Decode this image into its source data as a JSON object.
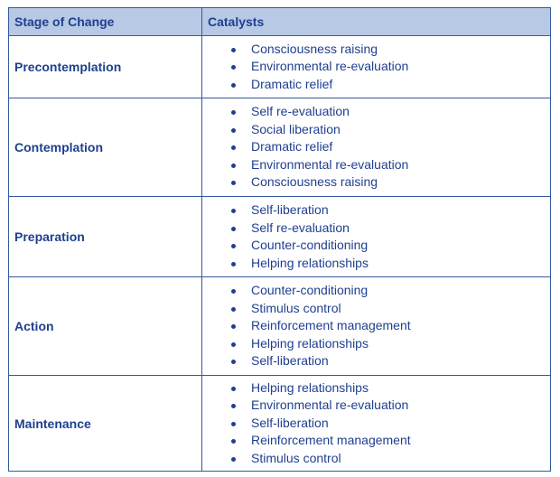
{
  "table": {
    "headers": [
      "Stage of Change",
      "Catalysts"
    ],
    "rows": [
      {
        "stage": "Precontemplation",
        "catalysts": [
          "Consciousness raising",
          "Environmental re-evaluation",
          "Dramatic relief"
        ]
      },
      {
        "stage": "Contemplation",
        "catalysts": [
          "Self re-evaluation",
          "Social liberation",
          "Dramatic relief",
          "Environmental re-evaluation",
          "Consciousness raising"
        ]
      },
      {
        "stage": "Preparation",
        "catalysts": [
          "Self-liberation",
          "Self re-evaluation",
          "Counter-conditioning",
          "Helping relationships"
        ]
      },
      {
        "stage": "Action",
        "catalysts": [
          "Counter-conditioning",
          "Stimulus control",
          "Reinforcement management",
          "Helping relationships",
          "Self-liberation"
        ]
      },
      {
        "stage": "Maintenance",
        "catalysts": [
          "Helping relationships",
          "Environmental re-evaluation",
          "Self-liberation",
          "Reinforcement management",
          "Stimulus control"
        ]
      }
    ]
  },
  "colors": {
    "text": "#1f3f8f",
    "header_bg": "#b8c9e6",
    "border": "#345a9b"
  }
}
